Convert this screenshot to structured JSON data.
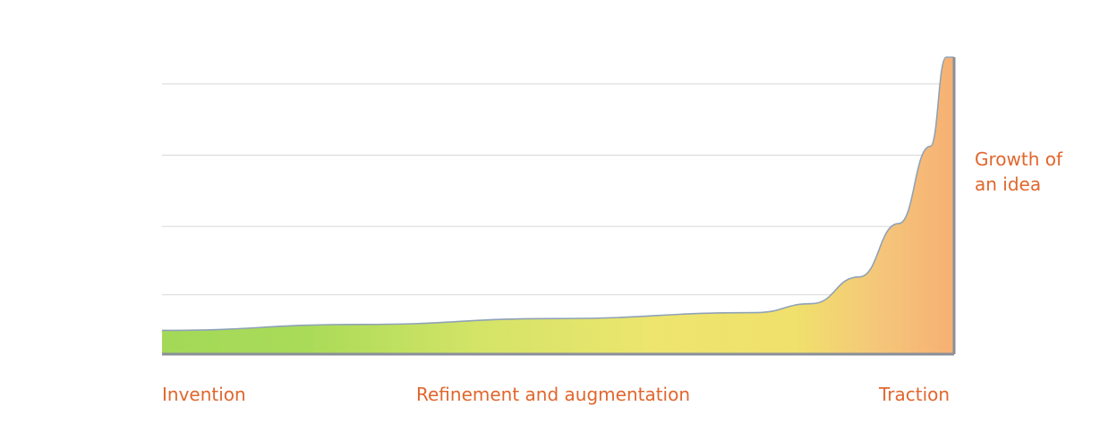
{
  "chart_data": {
    "type": "area",
    "title": "",
    "xlabel": "",
    "ylabel": "",
    "categories": [
      "Invention",
      "Refinement and augmentation",
      "Traction"
    ],
    "series": [
      {
        "name": "Growth of\nan idea",
        "points": [
          {
            "x": 0.0,
            "y": 0.08
          },
          {
            "x": 0.25,
            "y": 0.1
          },
          {
            "x": 0.5,
            "y": 0.12
          },
          {
            "x": 0.75,
            "y": 0.14
          },
          {
            "x": 0.82,
            "y": 0.17
          },
          {
            "x": 0.88,
            "y": 0.26
          },
          {
            "x": 0.93,
            "y": 0.44
          },
          {
            "x": 0.97,
            "y": 0.7
          },
          {
            "x": 0.99,
            "y": 1.0
          }
        ]
      }
    ],
    "xlim": [
      0,
      1
    ],
    "ylim": [
      0,
      1.0
    ],
    "grid": true,
    "colors": {
      "start": "#a3d957",
      "middle": "#eee76e",
      "end": "#f6b073",
      "label": "#e1662d",
      "axis": "#8a8f98",
      "curve": "#8fa2b8"
    }
  }
}
